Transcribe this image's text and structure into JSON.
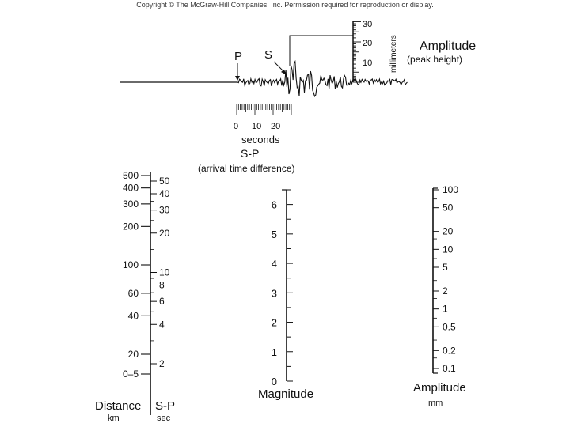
{
  "copyright": "Copyright © The McGraw-Hill Companies, Inc. Permission required for reproduction or display.",
  "seismogram": {
    "p_label": "P",
    "s_label": "S",
    "time_ticks": [
      "0",
      "10",
      "20"
    ],
    "time_unit": "seconds",
    "sp_title": "S-P",
    "sp_subtitle": "(arrival time difference)",
    "mm_ticks": [
      "30",
      "20",
      "10"
    ],
    "mm_unit": "millimeters",
    "amplitude_title": "Amplitude",
    "amplitude_subtitle": "(peak height)"
  },
  "nomogram": {
    "distance": {
      "label": "Distance",
      "unit": "km",
      "ticks": [
        {
          "text": "500",
          "value": 500
        },
        {
          "text": "400",
          "value": 400
        },
        {
          "text": "300",
          "value": 300
        },
        {
          "text": "200",
          "value": 200
        },
        {
          "text": "100",
          "value": 100
        },
        {
          "text": "60",
          "value": 60
        },
        {
          "text": "40",
          "value": 40
        },
        {
          "text": "20",
          "value": 20
        },
        {
          "text": "0–5",
          "value": 5
        }
      ]
    },
    "sp": {
      "label": "S-P",
      "unit": "sec",
      "ticks": [
        {
          "text": "50",
          "value": 50
        },
        {
          "text": "40",
          "value": 40
        },
        {
          "text": "30",
          "value": 30
        },
        {
          "text": "20",
          "value": 20
        },
        {
          "text": "10",
          "value": 10
        },
        {
          "text": "8",
          "value": 8
        },
        {
          "text": "6",
          "value": 6
        },
        {
          "text": "4",
          "value": 4
        },
        {
          "text": "2",
          "value": 2
        }
      ]
    },
    "magnitude": {
      "label": "Magnitude",
      "ticks": [
        {
          "text": "6",
          "value": 6
        },
        {
          "text": "5",
          "value": 5
        },
        {
          "text": "4",
          "value": 4
        },
        {
          "text": "3",
          "value": 3
        },
        {
          "text": "2",
          "value": 2
        },
        {
          "text": "1",
          "value": 1
        },
        {
          "text": "0",
          "value": 0
        }
      ]
    },
    "amplitude": {
      "label": "Amplitude",
      "unit": "mm",
      "ticks": [
        {
          "text": "100",
          "value": 100
        },
        {
          "text": "50",
          "value": 50
        },
        {
          "text": "20",
          "value": 20
        },
        {
          "text": "10",
          "value": 10
        },
        {
          "text": "5",
          "value": 5
        },
        {
          "text": "2",
          "value": 2
        },
        {
          "text": "1",
          "value": 1
        },
        {
          "text": "0.5",
          "value": 0.5
        },
        {
          "text": "0.2",
          "value": 0.2
        },
        {
          "text": "0.1",
          "value": 0.1
        }
      ]
    }
  }
}
